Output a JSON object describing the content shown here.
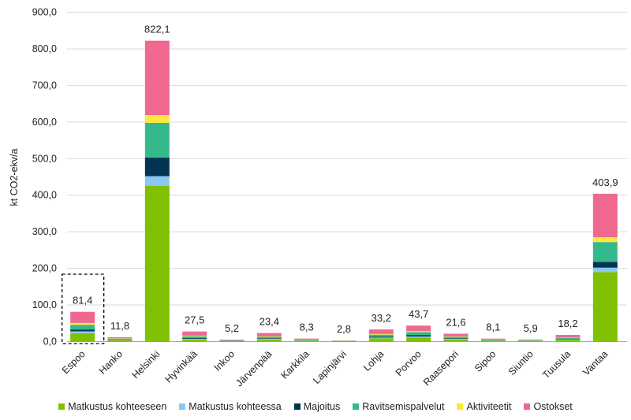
{
  "chart_data": {
    "type": "bar",
    "stacked": true,
    "ylabel": "kt CO2-ekv/a",
    "ylim": [
      0,
      900
    ],
    "yticks": [
      "0,0",
      "100,0",
      "200,0",
      "300,0",
      "400,0",
      "500,0",
      "600,0",
      "700,0",
      "800,0",
      "900,0"
    ],
    "grid": true,
    "legend_position": "bottom",
    "categories": [
      "Espoo",
      "Hanko",
      "Helsinki",
      "Hyvinkää",
      "Inkoo",
      "Järvenpää",
      "Karkkila",
      "Lapinjärvi",
      "Lohja",
      "Porvoo",
      "Raasepori",
      "Sipoo",
      "Siuntio",
      "Tuusula",
      "Vantaa"
    ],
    "totals": [
      "81,4",
      "11,8",
      "822,1",
      "27,5",
      "5,2",
      "23,4",
      "8,3",
      "2,8",
      "33,2",
      "43,7",
      "21,6",
      "8,1",
      "5,9",
      "18,2",
      "403,9"
    ],
    "highlighted": "Espoo",
    "series": [
      {
        "name": "Matkustus kohteeseen",
        "color": "#7fc000",
        "values": [
          23,
          4,
          426,
          6,
          1.5,
          6,
          2.5,
          1,
          9,
          11,
          6,
          2.5,
          2,
          5,
          190
        ]
      },
      {
        "name": "Matkustus kohteessa",
        "color": "#8ac8f0",
        "values": [
          5,
          0.8,
          26,
          1.5,
          0.4,
          1.5,
          0.6,
          0.2,
          2,
          3,
          1.5,
          0.6,
          0.4,
          1.2,
          12
        ]
      },
      {
        "name": "Majoitus",
        "color": "#033553",
        "values": [
          5,
          0.8,
          51,
          2,
          0.4,
          1.5,
          0.6,
          0.2,
          2.5,
          4,
          1.5,
          0.6,
          0.4,
          1.2,
          16
        ]
      },
      {
        "name": "Ravitsemispalvelut",
        "color": "#35b98a",
        "values": [
          13,
          2.5,
          95,
          5,
          1,
          4,
          1.5,
          0.5,
          5.5,
          8,
          4,
          1.5,
          1,
          3.5,
          54
        ]
      },
      {
        "name": "Aktiviteetit",
        "color": "#ffe83a",
        "values": [
          5,
          0.7,
          21,
          1.5,
          0.4,
          1.4,
          0.5,
          0.6,
          1.8,
          2.5,
          1.2,
          0.5,
          1.1,
          1,
          13
        ]
      },
      {
        "name": "Ostokset",
        "color": "#ee6890",
        "values": [
          30.4,
          3,
          203.1,
          11.5,
          1.5,
          9,
          2.6,
          0.3,
          12.4,
          15.2,
          7.4,
          2.4,
          1,
          6.3,
          118.9
        ]
      }
    ]
  }
}
